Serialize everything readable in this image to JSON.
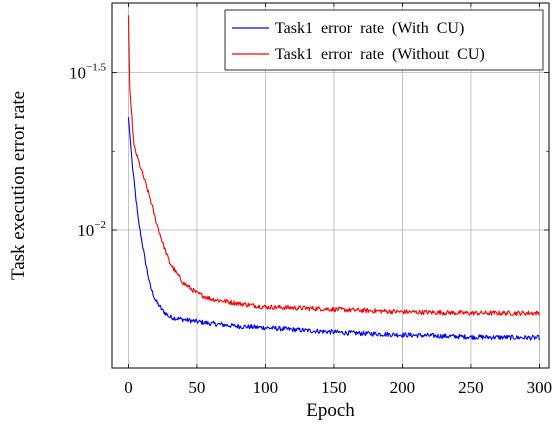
{
  "chart_data": {
    "type": "line",
    "title": "",
    "xlabel": "Epoch",
    "ylabel": "Task execution error rate",
    "x_range": [
      0,
      300
    ],
    "xlim": [
      -12,
      307
    ],
    "yscale": "log",
    "ylim": [
      0.00365,
      0.0525
    ],
    "x_ticks": [
      0,
      50,
      100,
      150,
      200,
      250,
      300
    ],
    "x_tick_labels": [
      "0",
      "50",
      "100",
      "150",
      "200",
      "250",
      "300"
    ],
    "y_ticks": [
      {
        "base": "10",
        "exponent": "−2",
        "value": 0.01
      },
      {
        "base": "10",
        "exponent": "−1.5",
        "value": 0.031623
      }
    ],
    "grid": true,
    "legend_position": "top-right",
    "series": [
      {
        "name": "Task1  error  rate  (With  CU)",
        "color": "#0000ff",
        "keypoints": [
          [
            0,
            0.0228
          ],
          [
            3,
            0.0158
          ],
          [
            7,
            0.0109
          ],
          [
            12,
            0.0081
          ],
          [
            16,
            0.0066
          ],
          [
            20,
            0.00595
          ],
          [
            25,
            0.00555
          ],
          [
            30,
            0.0053
          ],
          [
            40,
            0.0052
          ],
          [
            60,
            0.00505
          ],
          [
            80,
            0.00495
          ],
          [
            100,
            0.0049
          ],
          [
            130,
            0.0048
          ],
          [
            160,
            0.00472
          ],
          [
            200,
            0.00465
          ],
          [
            250,
            0.00458
          ],
          [
            300,
            0.00455
          ]
        ]
      },
      {
        "name": "Task1  error  rate  (Without  CU)",
        "color": "#ff0000",
        "keypoints": [
          [
            0,
            0.048
          ],
          [
            1,
            0.028
          ],
          [
            4,
            0.0185
          ],
          [
            8,
            0.0162
          ],
          [
            12,
            0.0143
          ],
          [
            16,
            0.0125
          ],
          [
            20,
            0.0107
          ],
          [
            25,
            0.0091
          ],
          [
            30,
            0.0079
          ],
          [
            35,
            0.0073
          ],
          [
            40,
            0.0068
          ],
          [
            50,
            0.0063
          ],
          [
            60,
            0.00605
          ],
          [
            80,
            0.00585
          ],
          [
            100,
            0.0057
          ],
          [
            130,
            0.00565
          ],
          [
            160,
            0.00558
          ],
          [
            200,
            0.0055
          ],
          [
            250,
            0.00545
          ],
          [
            300,
            0.00545
          ]
        ]
      }
    ]
  }
}
